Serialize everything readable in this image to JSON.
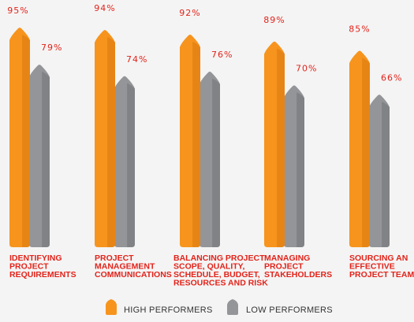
{
  "colors": {
    "high": "#f7941d",
    "high_shade": "#d8780e",
    "low": "#939598",
    "low_shade": "#717376",
    "accent": "#e2231a",
    "legend_text": "#333333"
  },
  "legend": {
    "high_label": "HIGH PERFORMERS",
    "low_label": "LOW PERFORMERS"
  },
  "chart_data": {
    "type": "bar",
    "categories": [
      [
        "IDENTIFYING",
        "PROJECT",
        "REQUIREMENTS"
      ],
      [
        "PROJECT",
        "MANAGEMENT",
        "COMMUNICATIONS"
      ],
      [
        "BALANCING PROJECT",
        "SCOPE, QUALITY,",
        "SCHEDULE, BUDGET,",
        "RESOURCES AND RISK"
      ],
      [
        "MANAGING",
        "PROJECT",
        "STAKEHOLDERS"
      ],
      [
        "SOURCING AN",
        "EFFECTIVE",
        "PROJECT TEAM"
      ]
    ],
    "series": [
      {
        "name": "HIGH PERFORMERS",
        "values": [
          95,
          94,
          92,
          89,
          85
        ],
        "labels": [
          "95%",
          "94%",
          "92%",
          "89%",
          "85%"
        ]
      },
      {
        "name": "LOW PERFORMERS",
        "values": [
          79,
          74,
          76,
          70,
          66
        ],
        "labels": [
          "79%",
          "74%",
          "76%",
          "70%",
          "66%"
        ]
      }
    ],
    "legend_position": "bottom",
    "grid": false
  }
}
